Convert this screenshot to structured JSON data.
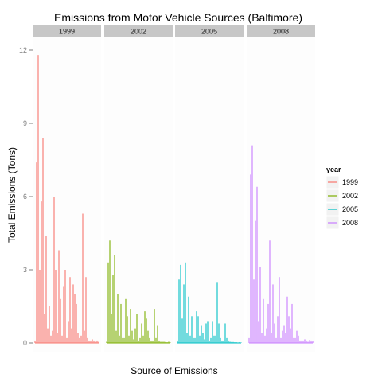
{
  "chart_data": {
    "type": "line",
    "title": "Emissions from Motor Vehicle Sources (Baltimore)",
    "xlabel": "Source of Emissions",
    "ylabel": "Total Emissions (Tons)",
    "ylim": [
      0,
      12
    ],
    "yticks": [
      0,
      3,
      6,
      9,
      12
    ],
    "facet_variable": "year",
    "legend_title": "year",
    "legend_position": "right",
    "grid": false,
    "colors": [
      "#F8766D",
      "#7CAE00",
      "#00BFC4",
      "#C77CFF"
    ],
    "series": [
      {
        "name": "1999",
        "values": [
          0.1,
          7.4,
          11.8,
          3.0,
          5.8,
          8.4,
          1.2,
          4.4,
          0.6,
          1.5,
          0.3,
          0.5,
          6.0,
          3.0,
          0.4,
          3.8,
          1.8,
          0.3,
          2.3,
          3.0,
          0.2,
          0.9,
          2.7,
          0.6,
          2.4,
          2.0,
          1.6,
          0.4,
          0.2,
          0.3,
          5.3,
          0.5,
          2.7,
          0.2,
          0.1,
          0.1,
          0.15,
          0.1,
          0.05,
          0.1,
          0.05
        ]
      },
      {
        "name": "2002",
        "values": [
          0.05,
          3.3,
          4.2,
          1.2,
          2.8,
          3.6,
          0.5,
          2.0,
          0.3,
          1.6,
          0.2,
          0.2,
          1.8,
          1.1,
          0.3,
          1.4,
          0.5,
          0.15,
          0.6,
          1.2,
          0.1,
          0.2,
          0.8,
          0.3,
          1.3,
          1.0,
          0.5,
          0.2,
          0.1,
          0.1,
          1.4,
          0.2,
          0.7,
          0.1,
          0.05,
          0.05,
          0.05,
          0.04,
          0.03,
          0.05,
          0.02
        ]
      },
      {
        "name": "2005",
        "values": [
          0.1,
          2.6,
          3.2,
          1.0,
          2.4,
          3.3,
          0.4,
          1.9,
          0.3,
          1.1,
          0.2,
          0.2,
          1.3,
          1.1,
          0.3,
          0.7,
          0.4,
          0.15,
          0.8,
          0.9,
          0.1,
          0.2,
          0.9,
          0.3,
          0.3,
          2.5,
          0.8,
          0.2,
          0.1,
          0.1,
          0.8,
          0.2,
          0.1,
          0.05,
          0.04,
          0.04,
          0.03,
          0.03,
          0.02,
          0.03,
          0.02
        ]
      },
      {
        "name": "2008",
        "values": [
          0.2,
          6.9,
          8.1,
          2.6,
          5.0,
          6.4,
          0.9,
          3.1,
          0.4,
          1.8,
          0.3,
          0.6,
          1.6,
          4.2,
          0.4,
          2.4,
          0.8,
          0.2,
          1.1,
          2.7,
          0.2,
          0.5,
          0.7,
          0.4,
          1.9,
          1.1,
          0.6,
          1.6,
          0.2,
          0.2,
          0.5,
          0.3,
          0.1,
          0.1,
          0.1,
          0.15,
          0.1,
          0.05,
          0.12,
          0.1,
          0.08
        ]
      }
    ]
  }
}
